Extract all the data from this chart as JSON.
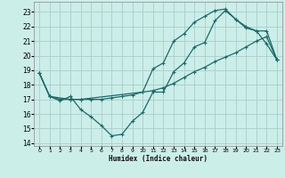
{
  "bg_color": "#cceee8",
  "grid_color": "#aacccc",
  "line_color": "#1a6b6b",
  "xlabel": "Humidex (Indice chaleur)",
  "xlim": [
    -0.5,
    23.5
  ],
  "ylim": [
    13.8,
    23.7
  ],
  "yticks": [
    14,
    15,
    16,
    17,
    18,
    19,
    20,
    21,
    22,
    23
  ],
  "xticks": [
    0,
    1,
    2,
    3,
    4,
    5,
    6,
    7,
    8,
    9,
    10,
    11,
    12,
    13,
    14,
    15,
    16,
    17,
    18,
    19,
    20,
    21,
    22,
    23
  ],
  "line1_x": [
    0,
    1,
    2,
    3,
    4,
    5,
    6,
    7,
    8,
    9,
    10,
    11,
    12,
    13,
    14,
    15,
    16,
    17,
    18,
    19,
    20,
    21,
    22,
    23
  ],
  "line1_y": [
    18.8,
    17.2,
    16.9,
    17.2,
    16.3,
    15.8,
    15.2,
    14.5,
    14.6,
    15.5,
    16.1,
    17.5,
    17.5,
    18.9,
    19.5,
    20.6,
    20.9,
    22.4,
    23.1,
    22.5,
    22.0,
    21.7,
    20.8,
    19.7
  ],
  "line2_x": [
    0,
    1,
    2,
    3,
    4,
    5,
    6,
    7,
    8,
    9,
    10,
    11,
    12,
    13,
    14,
    15,
    16,
    17,
    18,
    19,
    20,
    21,
    22,
    23
  ],
  "line2_y": [
    18.8,
    17.2,
    17.0,
    17.0,
    17.0,
    17.0,
    17.0,
    17.1,
    17.2,
    17.3,
    17.5,
    17.6,
    17.8,
    18.1,
    18.5,
    18.9,
    19.2,
    19.6,
    19.9,
    20.2,
    20.6,
    21.0,
    21.3,
    19.7
  ],
  "line3_x": [
    0,
    1,
    3,
    4,
    10,
    11,
    12,
    13,
    14,
    15,
    16,
    17,
    18,
    19,
    20,
    21,
    22,
    23
  ],
  "line3_y": [
    18.8,
    17.2,
    17.0,
    17.0,
    17.5,
    19.1,
    19.5,
    21.0,
    21.5,
    22.3,
    22.7,
    23.1,
    23.2,
    22.5,
    21.9,
    21.7,
    21.7,
    19.7
  ]
}
